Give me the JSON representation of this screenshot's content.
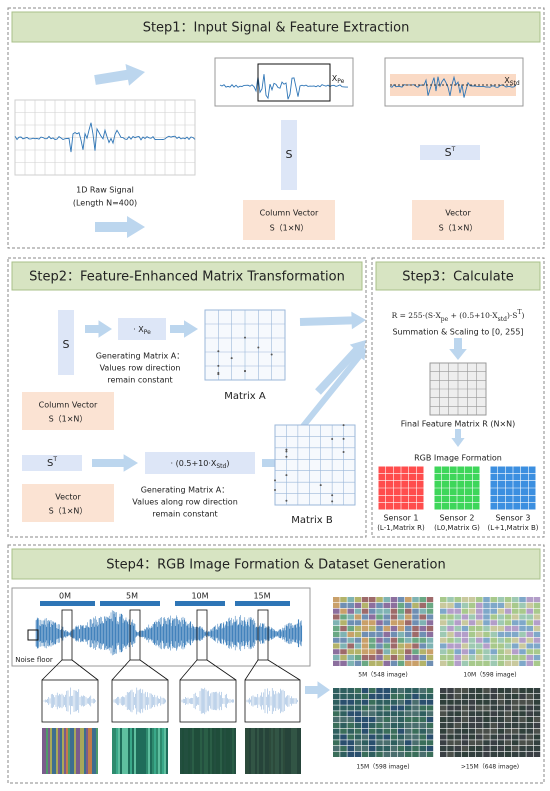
{
  "step1": {
    "title": "Step1：Input Signal & Feature Extraction",
    "raw_signal_label": "1D Raw Signal",
    "raw_signal_length": "(Length N=400)",
    "x_pe": {
      "base": "X",
      "sub": "Pe"
    },
    "x_std": {
      "base": "X",
      "sub": "Std"
    },
    "column_symbol": "S",
    "vector_symbol": {
      "base": "S",
      "sup": "T"
    },
    "column_vector": {
      "name": "Column Vector",
      "shape": "S（1×N）"
    },
    "vector": {
      "name": "Vector",
      "shape": "S（1×N）"
    }
  },
  "step2": {
    "title": "Step2：Feature-Enhanced Matrix Transformation",
    "column_symbol": "S",
    "factor_a": {
      "prefix": "· X",
      "sub": "Pe"
    },
    "matrix_a_note": [
      "Generating Matrix A：",
      "Values row direction",
      "remain constant"
    ],
    "matrix_a": "Matrix A",
    "column_vector": {
      "name": "Column Vector",
      "shape": "S（1×N）"
    },
    "vector_symbol": {
      "base": "S",
      "sup": "T"
    },
    "factor_b": {
      "prefix": "· (0.5+10·X",
      "sub": "Std",
      "suffix": ")"
    },
    "matrix_b_note": [
      "Generating Matrix A：",
      "Values along row direction",
      "remain constant"
    ],
    "matrix_b": "Matrix B",
    "vector": {
      "name": "Vector",
      "shape": "S（1×N）"
    }
  },
  "step3": {
    "title": "Step3：Calculate",
    "formula": [
      "R = 255·(S·X",
      "pe",
      " + (0.5+10·X",
      "std",
      ")·S",
      "T",
      ")"
    ],
    "scaling": "Summation & Scaling to [0, 255]",
    "final_matrix": "Final Feature Matrix R (N×N)",
    "rgb_formation": "RGB Image Formation",
    "sensors": [
      {
        "name": "Sensor 1",
        "detail": "(L-1,Matrix R)"
      },
      {
        "name": "Sensor 2",
        "detail": "(L0,Matrix G)"
      },
      {
        "name": "Sensor 3",
        "detail": "(L+1,Matrix B)"
      }
    ]
  },
  "step4": {
    "title": "Step4：RGB Image Formation & Dataset Generation",
    "distances": [
      "0M",
      "5M",
      "10M",
      "15M"
    ],
    "noise_floor": "Noise floor",
    "datasets": [
      "5M（548 image)",
      "10M（598 image)",
      "15M（598 image)",
      ">15M（648 image)"
    ]
  }
}
